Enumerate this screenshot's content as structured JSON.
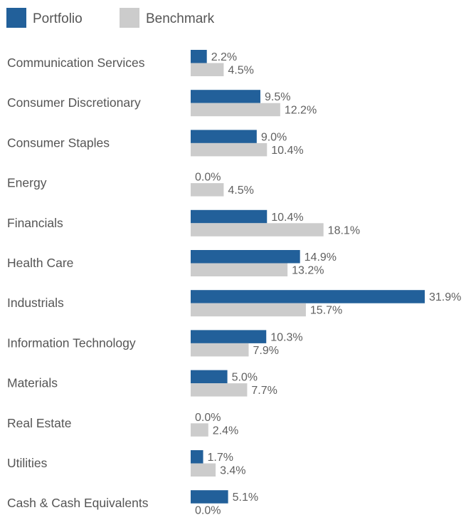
{
  "chart_data": {
    "type": "bar",
    "orientation": "horizontal",
    "categories": [
      "Communication Services",
      "Consumer Discretionary",
      "Consumer Staples",
      "Energy",
      "Financials",
      "Health Care",
      "Industrials",
      "Information Technology",
      "Materials",
      "Real Estate",
      "Utilities",
      "Cash & Cash Equivalents"
    ],
    "series": [
      {
        "name": "Portfolio",
        "color": "#22609A",
        "values": [
          2.2,
          9.5,
          9.0,
          0.0,
          10.4,
          14.9,
          31.9,
          10.3,
          5.0,
          0.0,
          1.7,
          5.1
        ],
        "labels": [
          "2.2%",
          "9.5%",
          "9.0%",
          "0.0%",
          "10.4%",
          "14.9%",
          "31.9%",
          "10.3%",
          "5.0%",
          "0.0%",
          "1.7%",
          "5.1%"
        ]
      },
      {
        "name": "Benchmark",
        "color": "#CCCCCC",
        "values": [
          4.5,
          12.2,
          10.4,
          4.5,
          18.1,
          13.2,
          15.7,
          7.9,
          7.7,
          2.4,
          3.4,
          0.0
        ],
        "labels": [
          "4.5%",
          "12.2%",
          "10.4%",
          "4.5%",
          "18.1%",
          "13.2%",
          "15.7%",
          "7.9%",
          "7.7%",
          "2.4%",
          "3.4%",
          "0.0%"
        ]
      }
    ],
    "xlim": [
      0,
      31.9
    ],
    "grid": false,
    "legend_position": "top-left",
    "data_labels": true
  }
}
